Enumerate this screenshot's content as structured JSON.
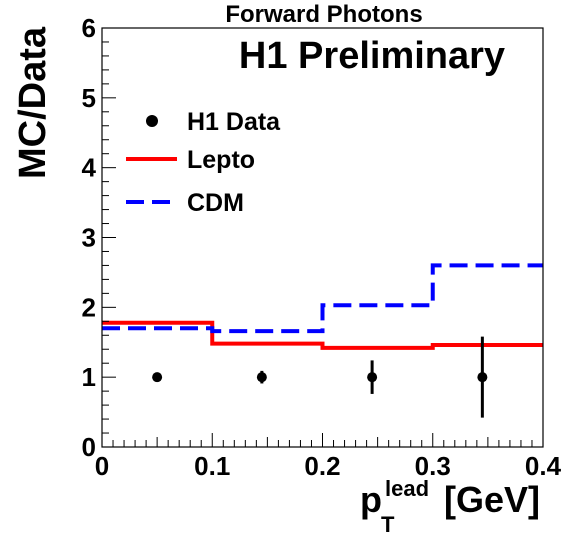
{
  "chart_data": {
    "type": "step",
    "title": "Forward Photons",
    "label": "H1 Preliminary",
    "ylabel": "MC/Data",
    "xlabel": {
      "main": "p",
      "subscript": "T",
      "superscript": "lead",
      "unit": "[GeV]"
    },
    "xlim": [
      0,
      0.4
    ],
    "ylim": [
      0,
      6
    ],
    "xticks": [
      "0",
      "0.1",
      "0.2",
      "0.3",
      "0.4"
    ],
    "yticks": [
      "0",
      "1",
      "2",
      "3",
      "4",
      "5",
      "6"
    ],
    "bin_edges": [
      0,
      0.1,
      0.2,
      0.3,
      0.4
    ],
    "legend_position": "top-left",
    "series": [
      {
        "name": "H1 Data",
        "style": "points",
        "color": "#000000",
        "x": [
          0.05,
          0.145,
          0.245,
          0.345
        ],
        "y": [
          1.0,
          1.0,
          1.0,
          1.0
        ],
        "yerr": [
          0.03,
          0.09,
          0.24,
          0.58
        ]
      },
      {
        "name": "Lepto",
        "style": "solid-step",
        "color": "#ff0000",
        "values": [
          1.78,
          1.48,
          1.42,
          1.46
        ]
      },
      {
        "name": "CDM",
        "style": "dashed-step",
        "color": "#0000ff",
        "values": [
          1.7,
          1.66,
          2.03,
          2.6
        ]
      }
    ]
  }
}
